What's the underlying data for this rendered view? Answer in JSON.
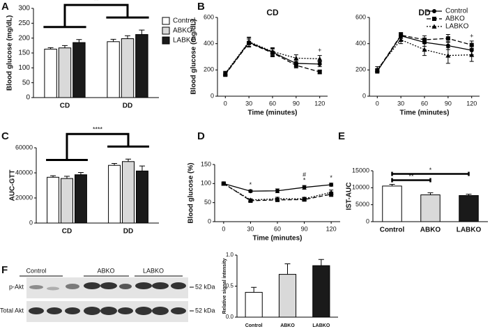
{
  "chart_data": [
    {
      "type": "bar",
      "panel": "A",
      "ylabel": "Blood glucose (mg/dL)",
      "categories": [
        "CD",
        "DD"
      ],
      "series": [
        {
          "name": "Control",
          "color": "#ffffff",
          "values": [
            163,
            188
          ],
          "errors": [
            5,
            8
          ]
        },
        {
          "name": "ABKO",
          "color": "#d9d9d9",
          "values": [
            167,
            198
          ],
          "errors": [
            8,
            10
          ]
        },
        {
          "name": "LABKO",
          "color": "#1a1a1a",
          "values": [
            185,
            212
          ],
          "errors": [
            10,
            15
          ]
        }
      ],
      "ylim": [
        0,
        300
      ],
      "yticks": [
        0,
        50,
        100,
        150,
        200,
        250,
        300
      ],
      "legend": "right",
      "significance": [
        {
          "label": "**",
          "from": 0,
          "to": 1
        }
      ]
    },
    {
      "type": "line",
      "panel": "B",
      "xlabel": "Time (minutes)",
      "ylabel": "Blood glucose (mg/dL)",
      "x": [
        0,
        30,
        60,
        90,
        120
      ],
      "xlim": [
        -10,
        130
      ],
      "xticks": [
        0,
        30,
        60,
        90,
        120
      ],
      "ylim": [
        0,
        600
      ],
      "yticks": [
        0,
        200,
        400,
        600
      ],
      "legend": "upper right",
      "series": [
        {
          "name": "Control",
          "color": "#000000",
          "dash": "solid",
          "marker": "circle"
        },
        {
          "name": "ABKO",
          "color": "#000000",
          "dash": "dashed",
          "marker": "square"
        },
        {
          "name": "LABKO",
          "color": "#000000",
          "dash": "dotted",
          "marker": "triangle"
        }
      ],
      "subplots": [
        {
          "title": "CD",
          "values": [
            [
              170,
              410,
              335,
              250,
              245
            ],
            [
              165,
              405,
              330,
              235,
              185
            ],
            [
              175,
              415,
              340,
              290,
              285
            ]
          ],
          "errors": [
            [
              15,
              35,
              30,
              25,
              20
            ],
            [
              15,
              30,
              30,
              20,
              15
            ],
            [
              15,
              35,
              30,
              25,
              25
            ]
          ],
          "annotations": [
            {
              "text": "+",
              "x": 120
            }
          ]
        },
        {
          "title": "DD",
          "values": [
            [
              190,
              460,
              410,
              385,
              350
            ],
            [
              195,
              465,
              430,
              440,
              390
            ],
            [
              205,
              430,
              355,
              310,
              315
            ]
          ],
          "errors": [
            [
              15,
              20,
              30,
              30,
              35
            ],
            [
              15,
              20,
              30,
              30,
              30
            ],
            [
              20,
              30,
              45,
              60,
              50
            ]
          ],
          "annotations": [
            {
              "text": "+",
              "x": 120
            }
          ]
        }
      ]
    },
    {
      "type": "bar",
      "panel": "C",
      "ylabel": "AUC-GTT",
      "categories": [
        "CD",
        "DD"
      ],
      "series": [
        {
          "color": "#ffffff",
          "values": [
            36500,
            46000
          ],
          "errors": [
            1200,
            1500
          ]
        },
        {
          "color": "#d9d9d9",
          "values": [
            35500,
            49000
          ],
          "errors": [
            1800,
            2000
          ]
        },
        {
          "color": "#1a1a1a",
          "values": [
            38500,
            41500
          ],
          "errors": [
            1800,
            4000
          ]
        }
      ],
      "ylim": [
        0,
        60000
      ],
      "yticks": [
        0,
        20000,
        40000,
        60000
      ],
      "significance": [
        {
          "label": "****",
          "from": 0,
          "to": 1
        }
      ]
    },
    {
      "type": "line",
      "panel": "D",
      "xlabel": "Time (minutes)",
      "ylabel": "Blood glucose (%)",
      "x": [
        0,
        30,
        60,
        90,
        120
      ],
      "xlim": [
        -10,
        130
      ],
      "xticks": [
        0,
        30,
        60,
        90,
        120
      ],
      "ylim": [
        0,
        150
      ],
      "yticks": [
        0,
        50,
        100,
        150
      ],
      "series": [
        {
          "color": "#000000",
          "dash": "solid",
          "marker": "circle"
        },
        {
          "color": "#000000",
          "dash": "dashed",
          "marker": "square"
        },
        {
          "color": "#000000",
          "dash": "dotted",
          "marker": "triangle"
        }
      ],
      "subplots": [
        {
          "values": [
            [
              100,
              80,
              81,
              90,
              97
            ],
            [
              100,
              55,
              57,
              58,
              72
            ],
            [
              100,
              57,
              60,
              60,
              77
            ]
          ],
          "errors": [
            [
              2,
              3,
              5,
              5,
              4
            ],
            [
              2,
              4,
              4,
              4,
              6
            ],
            [
              2,
              3,
              4,
              4,
              6
            ]
          ],
          "annotations": [
            {
              "text": "*",
              "x": 30
            },
            {
              "text": "*",
              "x": 90
            },
            {
              "text": "#",
              "x": 90
            },
            {
              "text": "*",
              "x": 120
            }
          ]
        }
      ]
    },
    {
      "type": "bar",
      "panel": "E",
      "ylabel": "IST-AUC",
      "categories": [
        "Control",
        "ABKO",
        "LABKO"
      ],
      "values": [
        10500,
        7900,
        7700
      ],
      "errors": [
        500,
        600,
        400
      ],
      "colors": [
        "#ffffff",
        "#d9d9d9",
        "#1a1a1a"
      ],
      "ylim": [
        0,
        15000
      ],
      "yticks": [
        0,
        5000,
        10000,
        15000
      ],
      "significance": [
        {
          "label": "**",
          "from": 0,
          "to": 1
        },
        {
          "label": "*",
          "from": 0,
          "to": 2
        }
      ]
    },
    {
      "type": "bar",
      "panel": "F",
      "ylabel": "Relative signal intensity",
      "categories": [
        "Control",
        "ABKO",
        "LABKO"
      ],
      "values": [
        0.4,
        0.69,
        0.83
      ],
      "errors": [
        0.08,
        0.17,
        0.1
      ],
      "colors": [
        "#ffffff",
        "#d9d9d9",
        "#1a1a1a"
      ],
      "ylim": [
        0,
        1
      ],
      "yticks": [
        {
          "value": 0,
          "label": "0.0"
        },
        {
          "value": 0.5,
          "label": "0.5"
        },
        {
          "value": 1,
          "label": "1.0"
        }
      ]
    }
  ],
  "blot": {
    "groups": [
      "Control",
      "ABKO",
      "LABKO"
    ],
    "rows": [
      {
        "label": "p-Akt",
        "marker": "52 kDa"
      },
      {
        "label": "Total Akt",
        "marker": "52 kDa"
      }
    ]
  }
}
